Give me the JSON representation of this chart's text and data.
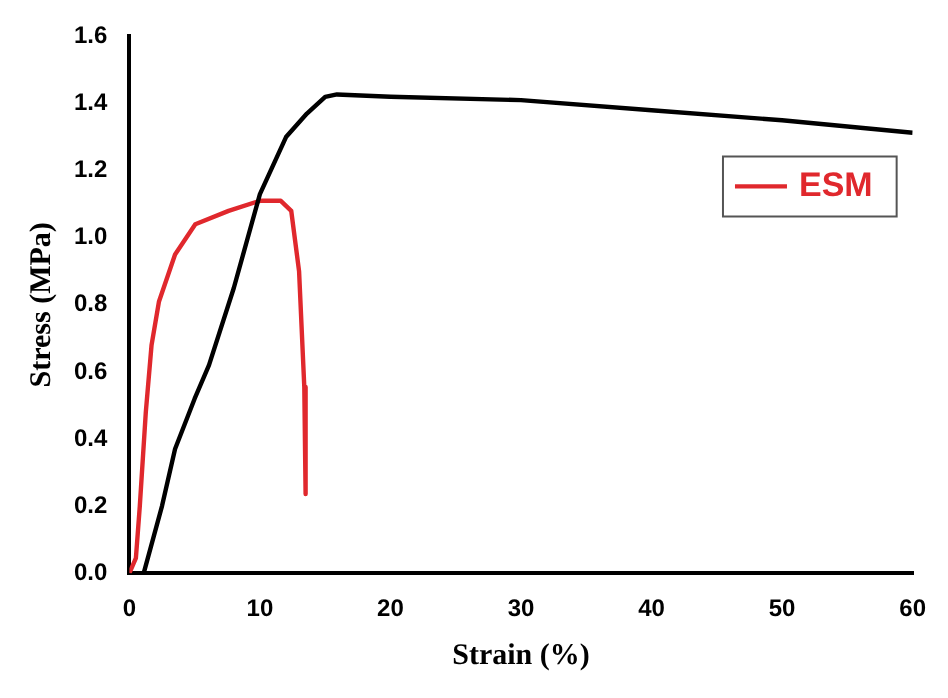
{
  "chart_data": {
    "type": "line",
    "xlabel": "Strain (%)",
    "ylabel": "Stress (MPa)",
    "xlim": [
      0,
      60
    ],
    "xticks": [
      0,
      10,
      20,
      30,
      40,
      50,
      60
    ],
    "ylim": [
      0,
      1.6
    ],
    "yticks": [
      {
        "value": 0,
        "label": "0.0"
      },
      0.2,
      0.4,
      0.6,
      0.8,
      {
        "value": 1,
        "label": "1.0"
      },
      1.2,
      1.4,
      1.6
    ],
    "legend": "top right",
    "grid": false,
    "marker": "none",
    "line_style": "solid",
    "series": [
      {
        "color": "#000000",
        "x": [
          1.1,
          2.5,
          3.5,
          5,
          6.1,
          8,
          10,
          12,
          13.6,
          15,
          15.9,
          20,
          30,
          40,
          50,
          60
        ],
        "values": [
          0,
          0.2,
          0.37,
          0.52,
          0.62,
          0.85,
          1.13,
          1.3,
          1.37,
          1.42,
          1.427,
          1.42,
          1.41,
          1.38,
          1.35,
          1.313
        ]
      },
      {
        "name": "ESM",
        "color": "#e0282d",
        "x": [
          0,
          0.5,
          0.8,
          1.26,
          1.7,
          2.27,
          3.5,
          5.05,
          7.6,
          10,
          11.6,
          12.4,
          13,
          13.4,
          13.5
        ],
        "values": [
          0,
          0.045,
          0.2,
          0.48,
          0.68,
          0.81,
          0.95,
          1.04,
          1.08,
          1.11,
          1.11,
          1.08,
          0.9,
          0.555,
          0.236
        ]
      }
    ]
  }
}
